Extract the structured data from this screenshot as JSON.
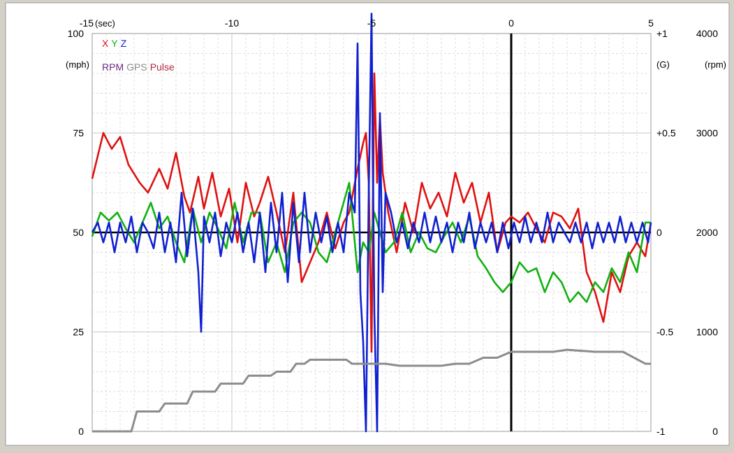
{
  "chart_data": {
    "type": "line",
    "x_unit": "(sec)",
    "left_unit": "(mph)",
    "g_unit": "(G)",
    "rpm_unit": "(rpm)",
    "xlim": [
      -15,
      5
    ],
    "x_ticks": [
      "-15",
      "-10",
      "-5",
      "0",
      "5"
    ],
    "speed_ylim": [
      0,
      100
    ],
    "speed_ticks": [
      "0",
      "25",
      "50",
      "75",
      "100"
    ],
    "g_ylim": [
      -1,
      1
    ],
    "g_ticks": [
      "-1",
      "-0.5",
      "0",
      "+0.5",
      "+1"
    ],
    "rpm_ylim": [
      0,
      4000
    ],
    "rpm_ticks": [
      "0",
      "1000",
      "2000",
      "3000",
      "4000"
    ],
    "event_marker_x": 0,
    "grid": true,
    "legend": {
      "placement": "top-left",
      "row1": [
        {
          "label": "X",
          "color": "#e01010"
        },
        {
          "label": "Y",
          "color": "#10b010"
        },
        {
          "label": "Z",
          "color": "#1020d0"
        }
      ],
      "row2": [
        {
          "label": "RPM",
          "color": "#6a2a80"
        },
        {
          "label": "GPS",
          "color": "#8c8c8c"
        },
        {
          "label": "Pulse",
          "color": "#b02a40"
        }
      ]
    },
    "series": [
      {
        "name": "X",
        "axis": "g",
        "color": "#e01010",
        "x": [
          -15,
          -14.6,
          -14.3,
          -14,
          -13.7,
          -13.3,
          -13,
          -12.6,
          -12.3,
          -12,
          -11.7,
          -11.5,
          -11.2,
          -11,
          -10.7,
          -10.4,
          -10.1,
          -9.8,
          -9.5,
          -9.2,
          -9,
          -8.7,
          -8.4,
          -8.1,
          -7.8,
          -7.5,
          -7.2,
          -6.9,
          -6.6,
          -6.3,
          -6,
          -5.8,
          -5.5,
          -5.3,
          -5.2,
          -5.1,
          -5,
          -4.9,
          -4.8,
          -4.7,
          -4.6,
          -4.4,
          -4.1,
          -3.8,
          -3.5,
          -3.2,
          -2.9,
          -2.6,
          -2.3,
          -2,
          -1.7,
          -1.4,
          -1.1,
          -0.8,
          -0.5,
          -0.2,
          0,
          0.3,
          0.6,
          0.9,
          1.2,
          1.5,
          1.8,
          2.1,
          2.4,
          2.7,
          3,
          3.3,
          3.6,
          3.9,
          4.2,
          4.5,
          4.8,
          5
        ],
        "values": [
          0.27,
          0.5,
          0.42,
          0.48,
          0.34,
          0.25,
          0.2,
          0.32,
          0.22,
          0.4,
          0.18,
          0.1,
          0.28,
          0.12,
          0.3,
          0.08,
          0.22,
          -0.05,
          0.25,
          0.08,
          0.15,
          0.28,
          0.1,
          -0.1,
          0.2,
          -0.25,
          -0.15,
          -0.05,
          0.1,
          -0.08,
          0.05,
          0.1,
          0.32,
          0.45,
          0.5,
          0.25,
          -0.6,
          0.8,
          0.25,
          0.58,
          0.3,
          0.1,
          -0.1,
          0.15,
          0.0,
          0.25,
          0.12,
          0.2,
          0.08,
          0.3,
          0.15,
          0.25,
          0.05,
          0.2,
          -0.1,
          0.05,
          0.08,
          0.05,
          0.1,
          0.02,
          -0.05,
          0.1,
          0.08,
          0.02,
          0.12,
          -0.2,
          -0.3,
          -0.45,
          -0.2,
          -0.3,
          -0.12,
          -0.05,
          -0.12,
          0.05
        ]
      },
      {
        "name": "Y",
        "axis": "g",
        "color": "#10b010",
        "x": [
          -15,
          -14.7,
          -14.4,
          -14.1,
          -13.8,
          -13.5,
          -13.2,
          -12.9,
          -12.6,
          -12.3,
          -12,
          -11.7,
          -11.4,
          -11.1,
          -10.8,
          -10.5,
          -10.2,
          -9.9,
          -9.6,
          -9.3,
          -9,
          -8.7,
          -8.4,
          -8.1,
          -7.8,
          -7.5,
          -7.2,
          -6.9,
          -6.6,
          -6.3,
          -6,
          -5.8,
          -5.5,
          -5.3,
          -5.1,
          -4.9,
          -4.7,
          -4.5,
          -4.2,
          -3.9,
          -3.6,
          -3.3,
          -3,
          -2.7,
          -2.4,
          -2.1,
          -1.8,
          -1.5,
          -1.2,
          -0.9,
          -0.6,
          -0.3,
          0,
          0.3,
          0.6,
          0.9,
          1.2,
          1.5,
          1.8,
          2.1,
          2.4,
          2.7,
          3,
          3.3,
          3.6,
          3.9,
          4.2,
          4.5,
          4.8,
          5
        ],
        "values": [
          -0.02,
          0.1,
          0.06,
          0.1,
          0.02,
          -0.05,
          0.05,
          0.15,
          0.02,
          0.08,
          -0.05,
          -0.15,
          0.12,
          -0.05,
          0.1,
          0.02,
          -0.08,
          0.15,
          -0.05,
          0.1,
          0.1,
          -0.15,
          -0.05,
          -0.2,
          0.05,
          0.1,
          0.05,
          -0.1,
          -0.15,
          0.0,
          0.15,
          0.25,
          -0.2,
          -0.05,
          -0.1,
          0.1,
          0.0,
          -0.1,
          -0.05,
          0.1,
          -0.1,
          0.0,
          -0.08,
          -0.1,
          -0.02,
          0.05,
          -0.05,
          0.08,
          -0.12,
          -0.18,
          -0.25,
          -0.3,
          -0.25,
          -0.15,
          -0.2,
          -0.18,
          -0.3,
          -0.2,
          -0.25,
          -0.35,
          -0.3,
          -0.35,
          -0.25,
          -0.3,
          -0.18,
          -0.25,
          -0.1,
          -0.2,
          0.05,
          0.05
        ]
      },
      {
        "name": "Z",
        "axis": "g",
        "color": "#1020d0",
        "x": [
          -15,
          -14.8,
          -14.6,
          -14.4,
          -14.2,
          -14,
          -13.8,
          -13.6,
          -13.4,
          -13.2,
          -13,
          -12.8,
          -12.6,
          -12.4,
          -12.2,
          -12,
          -11.8,
          -11.6,
          -11.4,
          -11.2,
          -11.1,
          -11,
          -10.8,
          -10.6,
          -10.4,
          -10.2,
          -10,
          -9.8,
          -9.6,
          -9.4,
          -9.2,
          -9,
          -8.8,
          -8.6,
          -8.4,
          -8.2,
          -8,
          -7.8,
          -7.6,
          -7.4,
          -7.2,
          -7,
          -6.8,
          -6.6,
          -6.4,
          -6.2,
          -6,
          -5.8,
          -5.6,
          -5.5,
          -5.4,
          -5.3,
          -5.2,
          -5.1,
          -5,
          -4.9,
          -4.8,
          -4.7,
          -4.6,
          -4.5,
          -4.3,
          -4.1,
          -3.9,
          -3.7,
          -3.5,
          -3.3,
          -3.1,
          -2.9,
          -2.7,
          -2.5,
          -2.3,
          -2.1,
          -1.9,
          -1.7,
          -1.5,
          -1.3,
          -1.1,
          -0.9,
          -0.7,
          -0.5,
          -0.3,
          -0.1,
          0.1,
          0.3,
          0.5,
          0.7,
          0.9,
          1.1,
          1.3,
          1.5,
          1.7,
          1.9,
          2.1,
          2.3,
          2.5,
          2.7,
          2.9,
          3.1,
          3.3,
          3.5,
          3.7,
          3.9,
          4.1,
          4.3,
          4.5,
          4.7,
          4.9,
          5
        ],
        "values": [
          0,
          0.05,
          -0.05,
          0.05,
          -0.1,
          0.05,
          -0.05,
          0.08,
          -0.1,
          0.05,
          0.0,
          -0.08,
          0.1,
          -0.1,
          0.05,
          -0.15,
          0.2,
          -0.12,
          0.12,
          -0.2,
          -0.5,
          0.08,
          -0.05,
          0.1,
          -0.12,
          0.05,
          -0.05,
          0.1,
          -0.1,
          0.05,
          -0.15,
          0.1,
          -0.2,
          0.15,
          -0.1,
          0.2,
          -0.25,
          0.15,
          -0.15,
          0.2,
          -0.1,
          0.1,
          -0.05,
          0.08,
          -0.1,
          0.05,
          -0.1,
          0.2,
          0.1,
          0.95,
          -0.3,
          -0.55,
          -1.0,
          0.2,
          1.1,
          -0.4,
          -1.0,
          0.6,
          -0.3,
          0.2,
          0.1,
          -0.05,
          0.05,
          -0.08,
          0.05,
          -0.05,
          0.1,
          -0.05,
          0.08,
          -0.05,
          0.05,
          -0.1,
          0.05,
          -0.05,
          0.1,
          -0.08,
          0.05,
          -0.05,
          0.05,
          -0.1,
          0.05,
          -0.08,
          0.05,
          -0.05,
          0.08,
          -0.05,
          0.05,
          -0.05,
          0.1,
          -0.05,
          0.05,
          0.0,
          -0.05,
          0.05,
          -0.05,
          0.05,
          -0.08,
          0.05,
          -0.05,
          0.05,
          -0.05,
          0.08,
          -0.05,
          0.05,
          -0.05,
          0.05,
          -0.05,
          0.05
        ]
      },
      {
        "name": "GPS",
        "axis": "speed",
        "color": "#8c8c8c",
        "x": [
          -15,
          -14,
          -13.6,
          -13.4,
          -12.6,
          -12.4,
          -11.6,
          -11.4,
          -10.6,
          -10.4,
          -9.6,
          -9.4,
          -8.6,
          -8.4,
          -7.9,
          -7.7,
          -7.4,
          -7.2,
          -6.6,
          -6.3,
          -5.9,
          -5.7,
          -5.5,
          -5.4,
          -4.5,
          -4,
          -3.5,
          -3,
          -2.5,
          -2,
          -1.5,
          -1,
          -0.5,
          0,
          0.5,
          1.5,
          2,
          3,
          4,
          4.8,
          5
        ],
        "values": [
          0,
          0,
          0,
          5,
          5,
          7,
          7,
          10,
          10,
          12,
          12,
          14,
          14,
          15,
          15,
          17,
          17,
          18,
          18,
          18,
          18,
          17,
          17,
          17,
          17,
          16.5,
          16.5,
          16.5,
          16.5,
          17,
          17,
          18.5,
          18.5,
          20,
          20,
          20,
          20.5,
          20,
          20,
          17,
          17
        ]
      }
    ]
  }
}
